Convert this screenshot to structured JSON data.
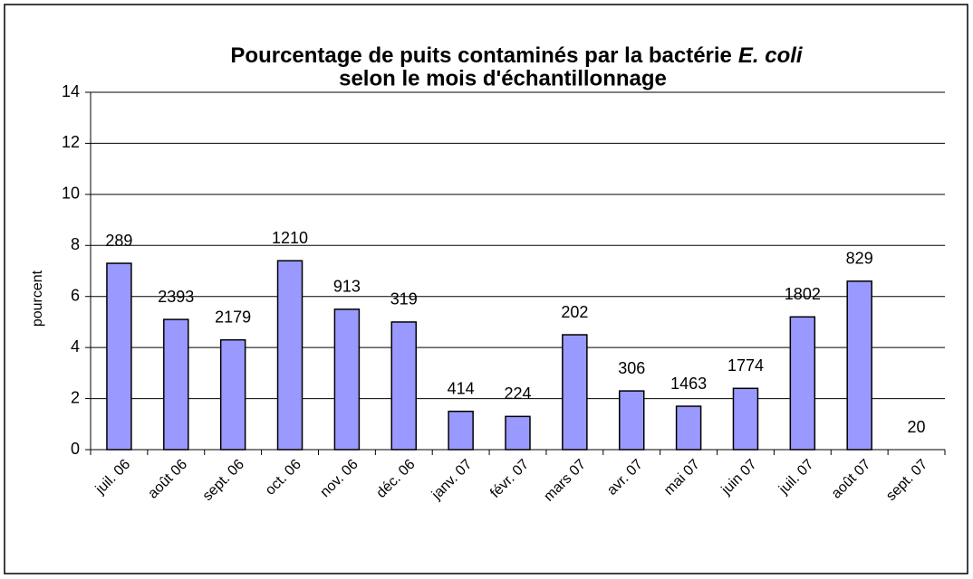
{
  "chart_data": {
    "type": "bar",
    "title": [
      "Pourcentage de puits contaminés par la bactérie",
      "E. coli",
      "selon le mois d'échantillonnage"
    ],
    "y_label": "pourcent",
    "categories": [
      "juil. 06",
      "août 06",
      "sept. 06",
      "oct. 06",
      "nov. 06",
      "déc. 06",
      "janv. 07",
      "févr. 07",
      "mars 07",
      "avr. 07",
      "mai 07",
      "juin 07",
      "juil. 07",
      "août 07",
      "sept. 07"
    ],
    "values": [
      7.3,
      5.1,
      4.3,
      7.4,
      5.5,
      5.0,
      1.5,
      1.3,
      4.5,
      2.3,
      1.7,
      2.4,
      5.2,
      6.6,
      0
    ],
    "annotations": [
      289,
      2393,
      2179,
      1210,
      913,
      319,
      414,
      224,
      202,
      306,
      1463,
      1774,
      1802,
      829,
      20
    ],
    "color": "#9999ff",
    "ylim": [
      0,
      14
    ],
    "yticks": [
      0,
      2,
      4,
      6,
      8,
      10,
      12,
      14
    ],
    "grid": true
  }
}
